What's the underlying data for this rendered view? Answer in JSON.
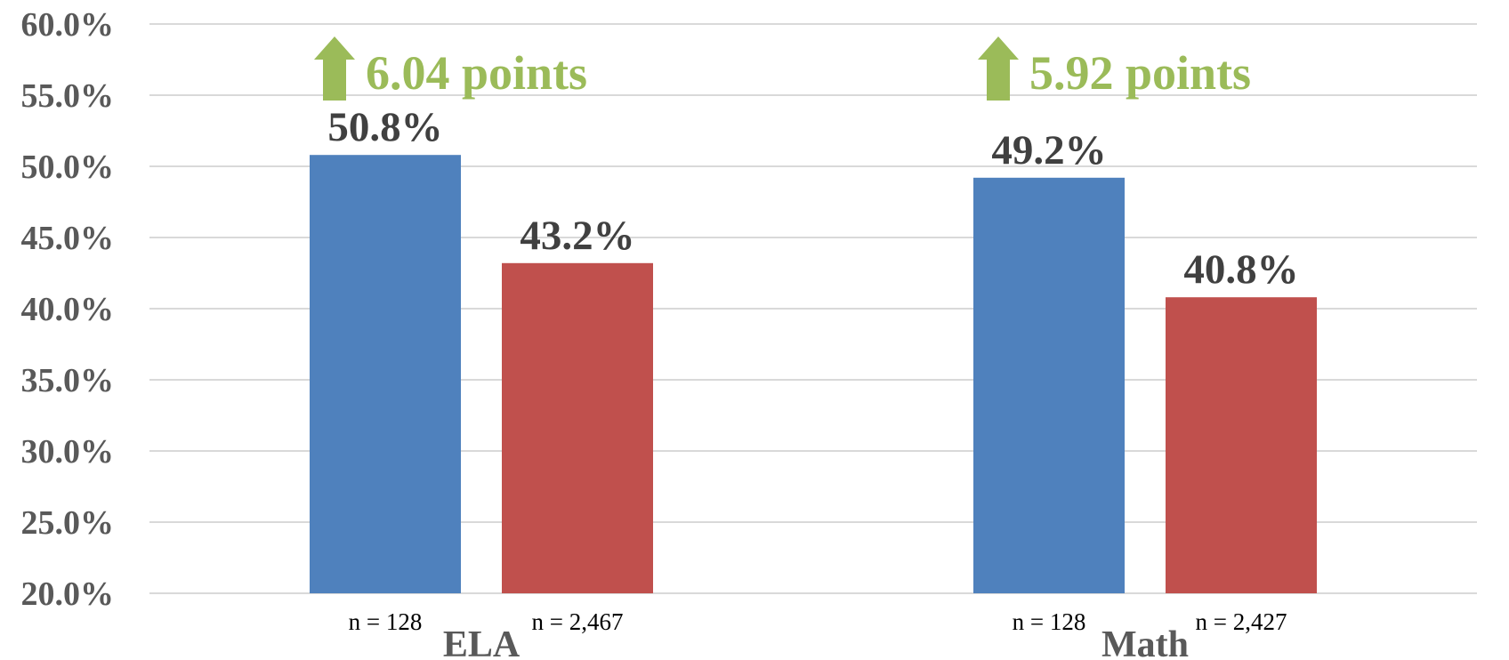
{
  "chart_data": {
    "type": "bar",
    "categories": [
      "ELA",
      "Math"
    ],
    "series": [
      {
        "color": "#4f81bd",
        "values": [
          50.8,
          49.2
        ],
        "value_labels": [
          "50.8%",
          "49.2%"
        ],
        "n_labels": [
          "n = 128",
          "n = 128"
        ]
      },
      {
        "color": "#c0504d",
        "values": [
          43.2,
          40.8
        ],
        "value_labels": [
          "43.2%",
          "40.8%"
        ],
        "n_labels": [
          "n = 2,467",
          "n = 2,427"
        ]
      }
    ],
    "annotations": [
      "6.04 points",
      "5.92 points"
    ],
    "annotation_color": "#9bbb59",
    "ylim": [
      20,
      60
    ],
    "yticks": [
      {
        "value": 20,
        "label": "20.0%"
      },
      {
        "value": 25,
        "label": "25.0%"
      },
      {
        "value": 30,
        "label": "30.0%"
      },
      {
        "value": 35,
        "label": "35.0%"
      },
      {
        "value": 40,
        "label": "40.0%"
      },
      {
        "value": 45,
        "label": "45.0%"
      },
      {
        "value": 50,
        "label": "50.0%"
      },
      {
        "value": 55,
        "label": "55.0%"
      },
      {
        "value": 60,
        "label": "60.0%"
      }
    ],
    "grid": true
  }
}
